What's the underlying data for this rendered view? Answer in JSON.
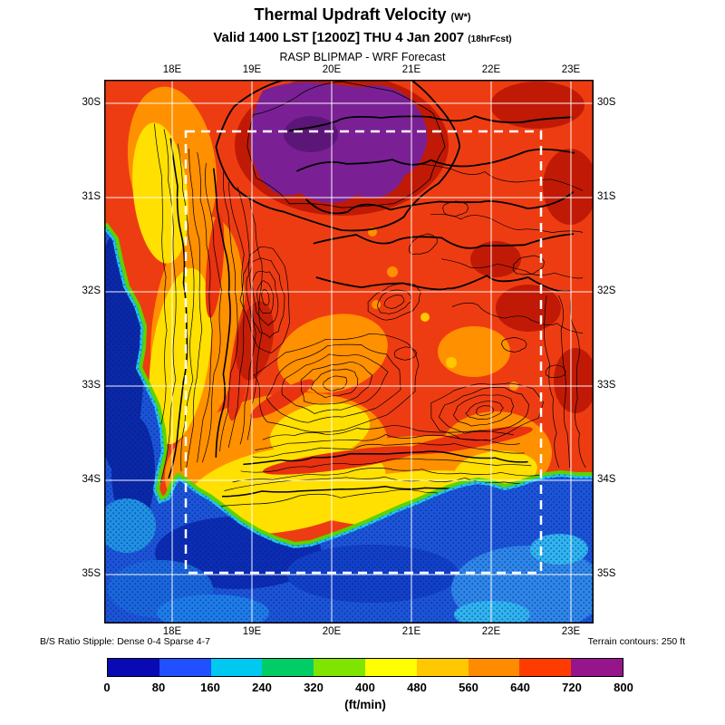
{
  "header": {
    "title": "Thermal Updraft Velocity",
    "title_suffix": "(W*)",
    "valid": "Valid 1400 LST [1200Z] THU 4 Jan 2007",
    "valid_suffix": "(18hrFcst)",
    "model": "RASP BLIPMAP - WRF Forecast"
  },
  "map": {
    "lon_ticks": [
      "18E",
      "19E",
      "20E",
      "21E",
      "22E",
      "23E"
    ],
    "lat_ticks": [
      "30S",
      "31S",
      "32S",
      "33S",
      "34S",
      "35S"
    ]
  },
  "notes": {
    "stipple": "B/S Ratio Stipple: Dense 0-4  Sparse 4-7",
    "terrain": "Terrain contours: 250 ft"
  },
  "colorbar": {
    "ticks": [
      "0",
      "80",
      "160",
      "240",
      "320",
      "400",
      "480",
      "560",
      "640",
      "720",
      "800"
    ],
    "colors": [
      "#0a0ab4",
      "#2050ff",
      "#00c8f0",
      "#00cd66",
      "#7ee400",
      "#ffff00",
      "#ffc800",
      "#ff8c00",
      "#ff3c00",
      "#96148c"
    ],
    "units": "(ft/min)"
  },
  "chart_data": {
    "type": "heatmap",
    "title": "Thermal Updraft Velocity (W*)",
    "valid": "Valid 1400 LST [1200Z] THU 4 Jan 2007 (18hrFcst)",
    "model": "RASP BLIPMAP - WRF Forecast",
    "units": "ft/min",
    "x_axis": {
      "label": "longitude",
      "ticks": [
        "18E",
        "19E",
        "20E",
        "21E",
        "22E",
        "23E"
      ]
    },
    "y_axis": {
      "label": "latitude",
      "ticks": [
        "30S",
        "31S",
        "32S",
        "33S",
        "34S",
        "35S"
      ]
    },
    "scale": {
      "min": 0,
      "max": 800,
      "step": 80,
      "colors": [
        "#0a0ab4",
        "#2050ff",
        "#00c8f0",
        "#00cd66",
        "#7ee400",
        "#ffff00",
        "#ffc800",
        "#ff8c00",
        "#ff3c00",
        "#96148c"
      ]
    },
    "regions": [
      {
        "area": "ocean west and south of the coastline",
        "value_ftmin": "0-160"
      },
      {
        "area": "narrow coastal rim (green/cyan band)",
        "value_ftmin": "160-400"
      },
      {
        "area": "west-coast strip and southern coastal belt",
        "value_ftmin": "400-560"
      },
      {
        "area": "western interior / Little Karoo (orange)",
        "value_ftmin": "560-640"
      },
      {
        "area": "interior plateau north and east (red)",
        "value_ftmin": "640-720"
      },
      {
        "area": "top-center highland blob (purple, ringed dark red)",
        "value_ftmin": "720-800"
      }
    ],
    "overlays": [
      "black terrain contours every 250 ft",
      "B/S ratio stipple dots over ocean",
      "white lat/lon grid each degree",
      "white dashed inner forecast domain box"
    ]
  }
}
